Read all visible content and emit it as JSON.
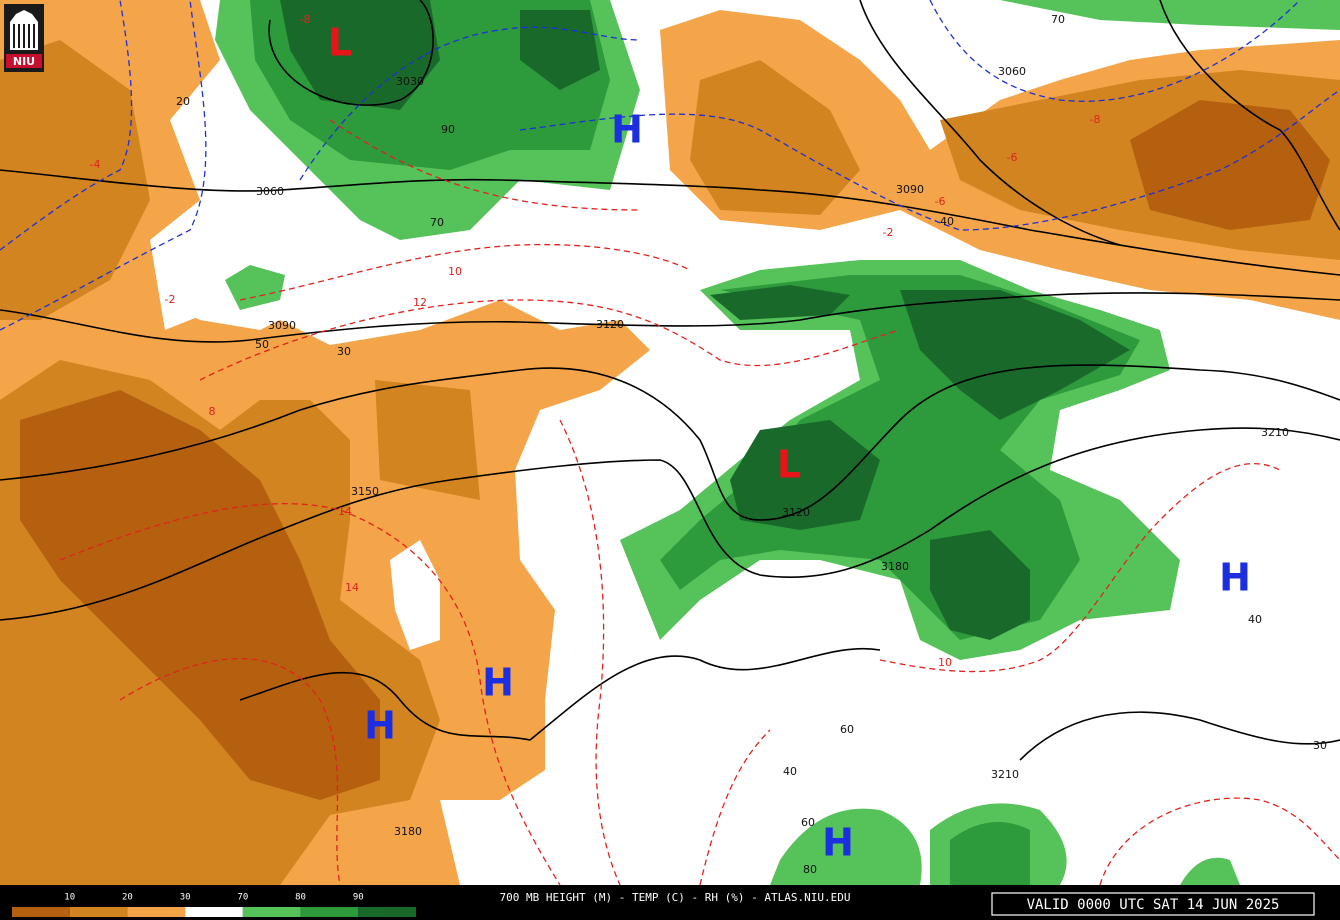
{
  "logo": "NIU",
  "legend": {
    "labels": [
      "10",
      "20",
      "30",
      "70",
      "80",
      "90"
    ]
  },
  "footer": {
    "product": "700 MB HEIGHT (M) - TEMP (C) - RH (%) - ATLAS.NIU.EDU",
    "valid": "VALID 0000 UTC SAT 14 JUN 2025"
  },
  "pressure_centers": [
    "L",
    "H",
    "L",
    "H",
    "H",
    "H",
    "H"
  ],
  "height_labels": [
    "3030",
    "3060",
    "3090",
    "3060",
    "3090",
    "3120",
    "3150",
    "3120",
    "3180",
    "3210",
    "3210",
    "3180"
  ],
  "temperature_labels": [
    "-2",
    "-4",
    "-6",
    "-8",
    "10",
    "12",
    "14",
    "8",
    "-2",
    "-6",
    "-8",
    "10",
    "14"
  ],
  "rh_labels": [
    "90",
    "70",
    "50",
    "30",
    "20",
    "40",
    "60",
    "80",
    "70",
    "40",
    "60",
    "30",
    "40"
  ]
}
